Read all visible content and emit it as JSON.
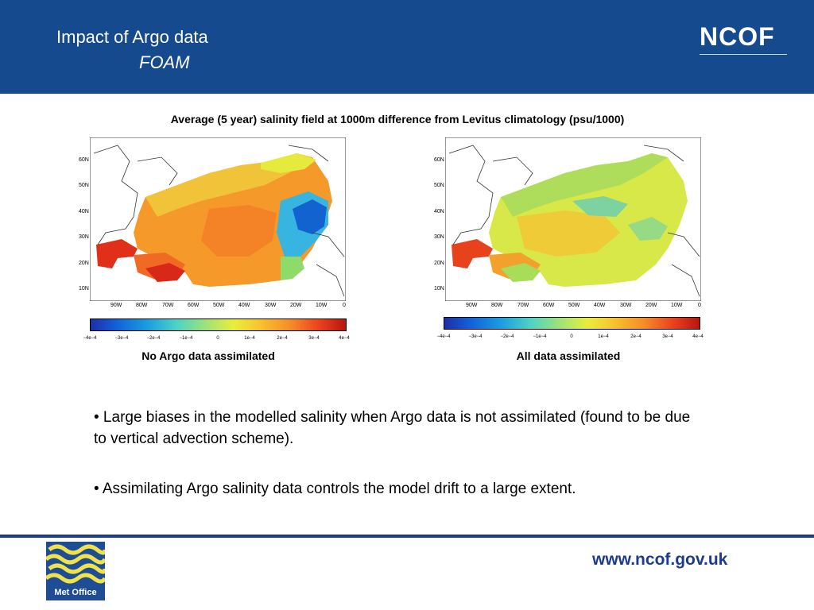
{
  "header": {
    "title_line1": "Impact of Argo data",
    "title_line2": "FOAM",
    "brand": "NCOF"
  },
  "caption": "Average (5 year) salinity field at 1000m difference from Levitus climatology (psu/1000)",
  "maps": [
    {
      "label": "No Argo data assimilated",
      "lat_labels": [
        "60N",
        "50N",
        "40N",
        "30N",
        "20N",
        "10N"
      ],
      "lon_labels": [
        "90W",
        "80W",
        "70W",
        "60W",
        "50W",
        "40W",
        "30W",
        "20W",
        "10W",
        "0"
      ],
      "colorbar_ticks": [
        "−4e−4",
        "−3e−4",
        "−2e−4",
        "−1e−4",
        "0",
        "1e−4",
        "2e−4",
        "3e−4",
        "4e−4"
      ]
    },
    {
      "label": "All data assimilated",
      "lat_labels": [
        "60N",
        "50N",
        "40N",
        "30N",
        "20N",
        "10N"
      ],
      "lon_labels": [
        "90W",
        "80W",
        "70W",
        "60W",
        "50W",
        "40W",
        "30W",
        "20W",
        "10W",
        "0"
      ],
      "colorbar_ticks": [
        "−4e−4",
        "−3e−4",
        "−2e−4",
        "−1e−4",
        "0",
        "1e−4",
        "2e−4",
        "3e−4",
        "4e−4"
      ]
    }
  ],
  "bullets": [
    "• Large biases in the modelled salinity when Argo data is not assimilated (found to be due to vertical advection scheme).",
    "• Assimilating Argo salinity data controls the model drift to a large extent."
  ],
  "footer": {
    "logo_text": "Met Office",
    "url": "www.ncof.gov.uk"
  },
  "colors": {
    "header_bg": "#154a8f",
    "footer_line": "#1c3b8a",
    "url": "#1c3b8a"
  }
}
